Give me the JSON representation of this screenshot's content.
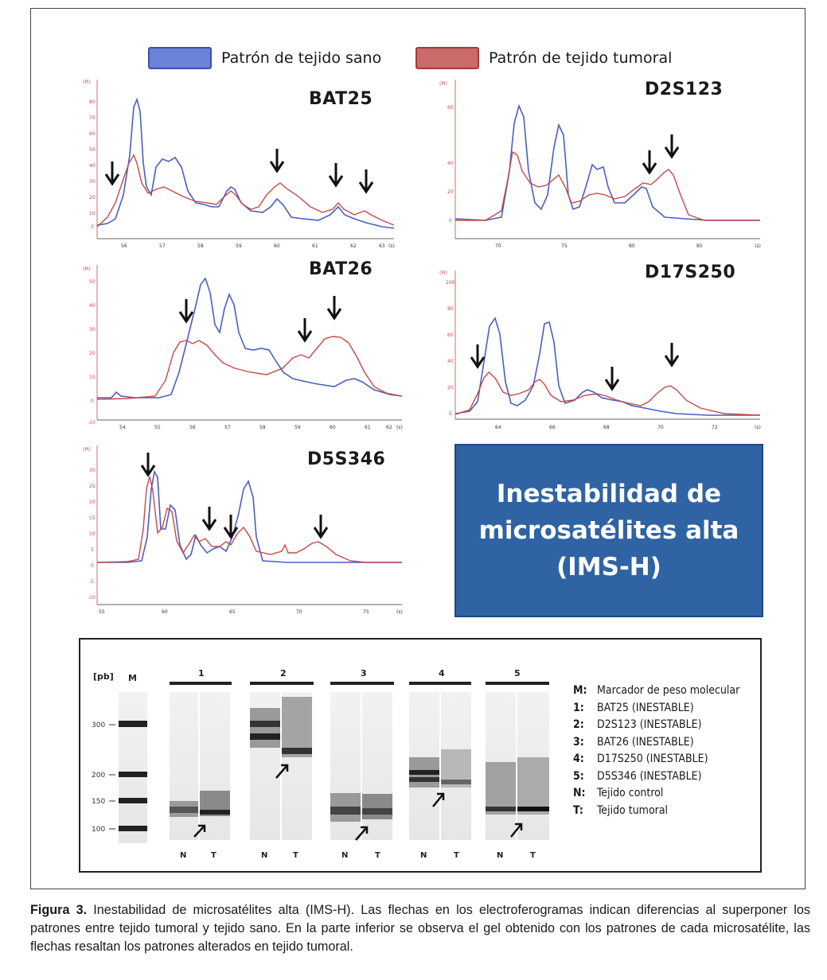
{
  "legend": {
    "healthy_label": "Patrón de tejido sano",
    "tumor_label": "Patrón de tejido tumoral",
    "healthy_color": "#4a5fc1",
    "tumor_color": "#c44a4a"
  },
  "panels": {
    "bat25": {
      "title": "BAT25",
      "yticks": [
        "(Pi)",
        "80",
        "70",
        "60",
        "50",
        "40",
        "30",
        "20",
        "10",
        "0"
      ],
      "xticks": [
        "56",
        "57",
        "58",
        "59",
        "60",
        "61",
        "62",
        "63",
        "(s)"
      ]
    },
    "d2s123": {
      "title": "D2S123",
      "yticks": [
        "(Pi)",
        "60",
        "40",
        "20",
        "0"
      ],
      "xticks": [
        "70",
        "75",
        "80",
        "85",
        "(s)"
      ]
    },
    "bat26": {
      "title": "BAT26",
      "yticks": [
        "(Pi)",
        "50",
        "40",
        "30",
        "20",
        "10",
        "0",
        "-10"
      ],
      "xticks": [
        "54",
        "55",
        "56",
        "57",
        "58",
        "59",
        "60",
        "61",
        "62",
        "(s)"
      ]
    },
    "d17s250": {
      "title": "D17S250",
      "yticks": [
        "(Pi)",
        "100",
        "80",
        "60",
        "40",
        "20",
        "0"
      ],
      "xticks": [
        "64",
        "66",
        "68",
        "70",
        "72",
        "(s)"
      ]
    },
    "d5s346": {
      "title": "D5S346",
      "yticks": [
        "(Pi)",
        "30",
        "25",
        "20",
        "15",
        "10",
        "5",
        "0",
        "-5",
        "-10"
      ],
      "xticks": [
        "55",
        "60",
        "65",
        "70",
        "75",
        "(s)"
      ]
    }
  },
  "ims_box": {
    "line1": "Inestabilidad de",
    "line2": "microsatélites alta",
    "line3": "(IMS-H)"
  },
  "gel": {
    "unit_label": "[pb]",
    "marker_label": "M",
    "size_labels": [
      "300",
      "200",
      "150",
      "100"
    ],
    "lane_groups": [
      "1",
      "2",
      "3",
      "4",
      "5"
    ],
    "lane_labels": [
      "N",
      "T"
    ],
    "legend": [
      {
        "key": "M:",
        "text": "Marcador de peso molecular"
      },
      {
        "key": "1:",
        "text": "BAT25 (INESTABLE)"
      },
      {
        "key": "2:",
        "text": "D2S123 (INESTABLE)"
      },
      {
        "key": "3:",
        "text": "BAT26 (INESTABLE)"
      },
      {
        "key": "4:",
        "text": "D17S250 (INESTABLE)"
      },
      {
        "key": "5:",
        "text": "D5S346 (INESTABLE)"
      },
      {
        "key": "N:",
        "text": "Tejido control"
      },
      {
        "key": "T:",
        "text": "Tejido tumoral"
      }
    ]
  },
  "caption": {
    "label": "Figura 3.",
    "text": " Inestabilidad de microsatélites alta (IMS-H). Las flechas en los electroferogramas indican diferencias al superponer los patrones entre tejido tumoral y tejido sano. En la parte inferior se observa el gel obtenido con los patrones de cada microsatélite, las flechas resaltan los patrones alterados en tejido tumoral."
  }
}
